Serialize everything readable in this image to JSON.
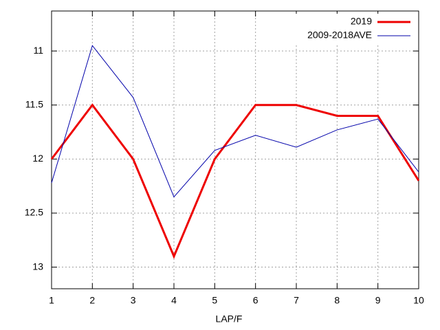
{
  "chart_data": {
    "type": "line",
    "x": [
      1,
      2,
      3,
      4,
      5,
      6,
      7,
      8,
      9,
      10
    ],
    "series": [
      {
        "name": "2019",
        "color": "#ee0000",
        "width": 3,
        "values": [
          12.0,
          11.5,
          12.0,
          12.9,
          12.0,
          11.5,
          11.5,
          11.6,
          11.6,
          12.2
        ]
      },
      {
        "name": "2009-2018AVE",
        "color": "#0000aa",
        "width": 1,
        "values": [
          12.22,
          10.95,
          11.43,
          12.35,
          11.92,
          11.78,
          11.89,
          11.73,
          11.63,
          12.12
        ]
      }
    ],
    "xlabel": "LAP/F",
    "xlim": [
      1,
      10
    ],
    "xticks": [
      1,
      2,
      3,
      4,
      5,
      6,
      7,
      8,
      9,
      10
    ],
    "ylim": [
      13.2,
      10.63
    ],
    "yticks": [
      11,
      11.5,
      12,
      12.5,
      13
    ],
    "grid": true,
    "legend": "top-right"
  }
}
